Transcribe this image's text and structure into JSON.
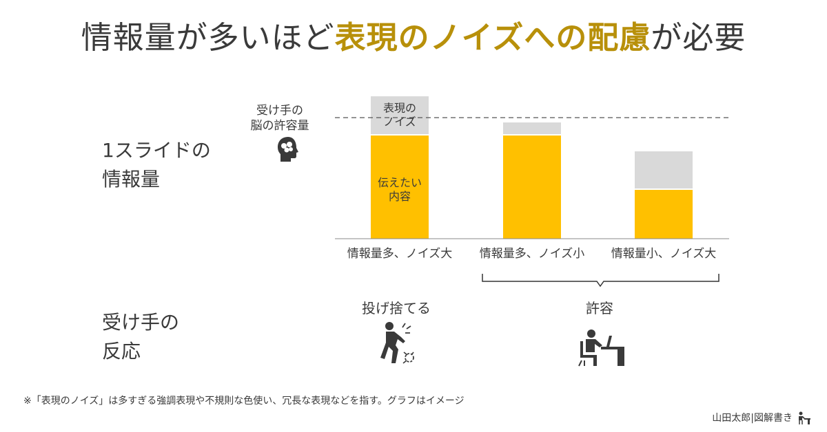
{
  "title": {
    "prefix": "情報量が多いほど",
    "highlight": "表現のノイズへの配慮",
    "suffix": "が必要"
  },
  "labels": {
    "info_amount": "1スライドの\n情報量",
    "capacity": "受け手の\n脳の許容量",
    "reaction": "受け手の\n反応",
    "reaction_throw": "投げ捨てる",
    "reaction_accept": "許容"
  },
  "chart_data": {
    "type": "bar",
    "stacked": true,
    "categories": [
      "情報量多、ノイズ大",
      "情報量多、ノイズ小",
      "情報量小、ノイズ大"
    ],
    "series": [
      {
        "name": "伝えたい\n内容",
        "color": "#ffc000",
        "values": [
          150,
          150,
          71
        ]
      },
      {
        "name": "表現の\nノイズ",
        "color": "#d9d9d9",
        "values": [
          57,
          19,
          56
        ]
      }
    ],
    "reference_line": {
      "label": "受け手の\n脳の許容量",
      "value": 176,
      "style": "dashed"
    },
    "ylim": [
      0,
      210
    ]
  },
  "footnote": "※「表現のノイズ」は多すぎる強調表現や不規則な色使い、冗長な表現などを指す。グラフはイメージ",
  "credit": "山田太郎|図解書き",
  "colors": {
    "accent": "#b8900a",
    "bar_content": "#ffc000",
    "bar_noise": "#d9d9d9",
    "text": "#3a3a3a"
  },
  "icons": [
    "brain-head-icon",
    "throwing-person-icon",
    "working-person-icon",
    "desk-worker-icon"
  ]
}
